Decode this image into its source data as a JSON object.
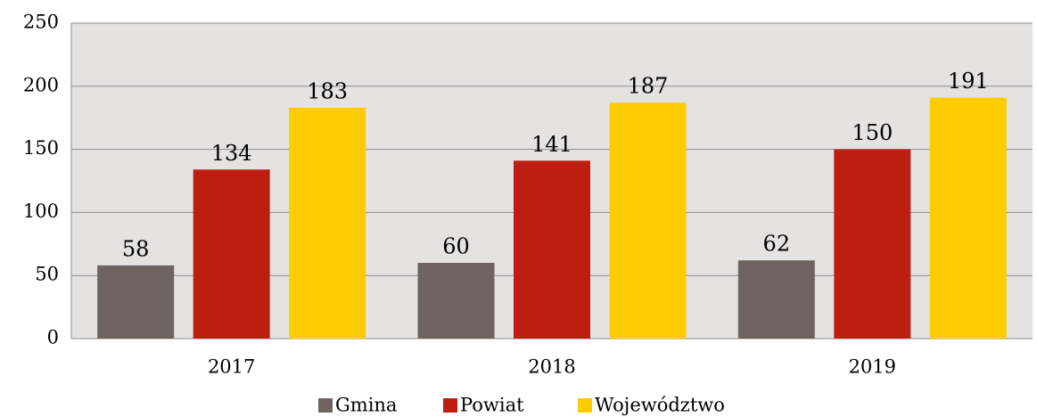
{
  "chart_data": {
    "type": "bar",
    "categories": [
      "2017",
      "2018",
      "2019"
    ],
    "series": [
      {
        "name": "Gmina",
        "color": "#6f6360",
        "values": [
          58,
          60,
          62
        ]
      },
      {
        "name": "Powiat",
        "color": "#bc1e10",
        "values": [
          134,
          141,
          150
        ]
      },
      {
        "name": "Województwo",
        "color": "#ffcc00",
        "values": [
          183,
          187,
          191
        ]
      }
    ],
    "ylim": [
      0,
      250
    ],
    "yticks": [
      0,
      50,
      100,
      150,
      200,
      250
    ],
    "grid": true,
    "legend": "bottom"
  }
}
